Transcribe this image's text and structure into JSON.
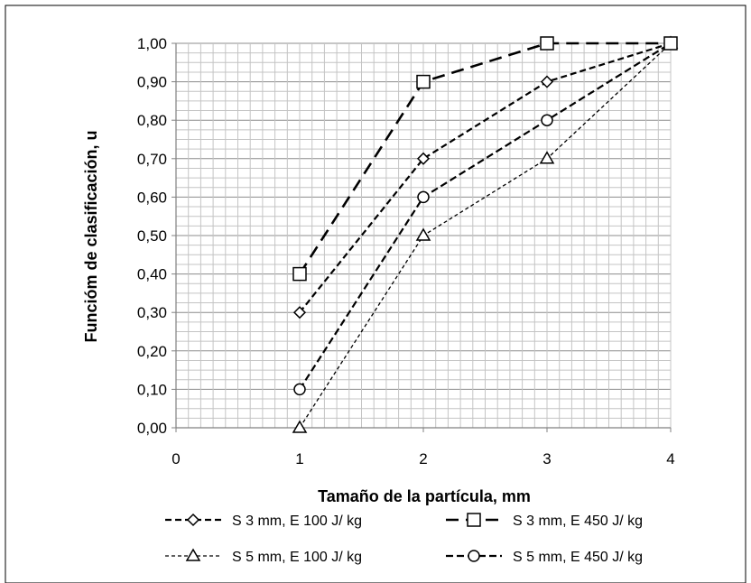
{
  "chart_data": {
    "type": "line",
    "title": "",
    "xlabel": "Tamaño de la partícula, mm",
    "ylabel": "Funcióm de clasificación, u",
    "xlim": [
      0,
      4
    ],
    "ylim": [
      0,
      1
    ],
    "x_ticks": [
      "0",
      "1",
      "2",
      "3",
      "4"
    ],
    "y_ticks": [
      "0,00",
      "0,10",
      "0,20",
      "0,30",
      "0,40",
      "0,50",
      "0,60",
      "0,70",
      "0,80",
      "0,90",
      "1,00"
    ],
    "grid": true,
    "legend_position": "bottom",
    "series": [
      {
        "name": "S 3 mm, E 100 J/ kg",
        "marker": "diamond",
        "x": [
          1,
          2,
          3,
          4
        ],
        "values": [
          0.3,
          0.7,
          0.9,
          1.0
        ]
      },
      {
        "name": "S 3 mm, E 450 J/ kg",
        "marker": "square",
        "x": [
          1,
          2,
          3,
          4
        ],
        "values": [
          0.4,
          0.9,
          1.0,
          1.0
        ]
      },
      {
        "name": "S 5 mm, E 100 J/ kg",
        "marker": "triangle",
        "x": [
          1,
          2,
          3,
          4
        ],
        "values": [
          0.0,
          0.5,
          0.7,
          1.0
        ]
      },
      {
        "name": "S 5 mm, E 450 J/ kg",
        "marker": "circle",
        "x": [
          1,
          2,
          3,
          4
        ],
        "values": [
          0.1,
          0.6,
          0.8,
          1.0
        ]
      }
    ]
  }
}
